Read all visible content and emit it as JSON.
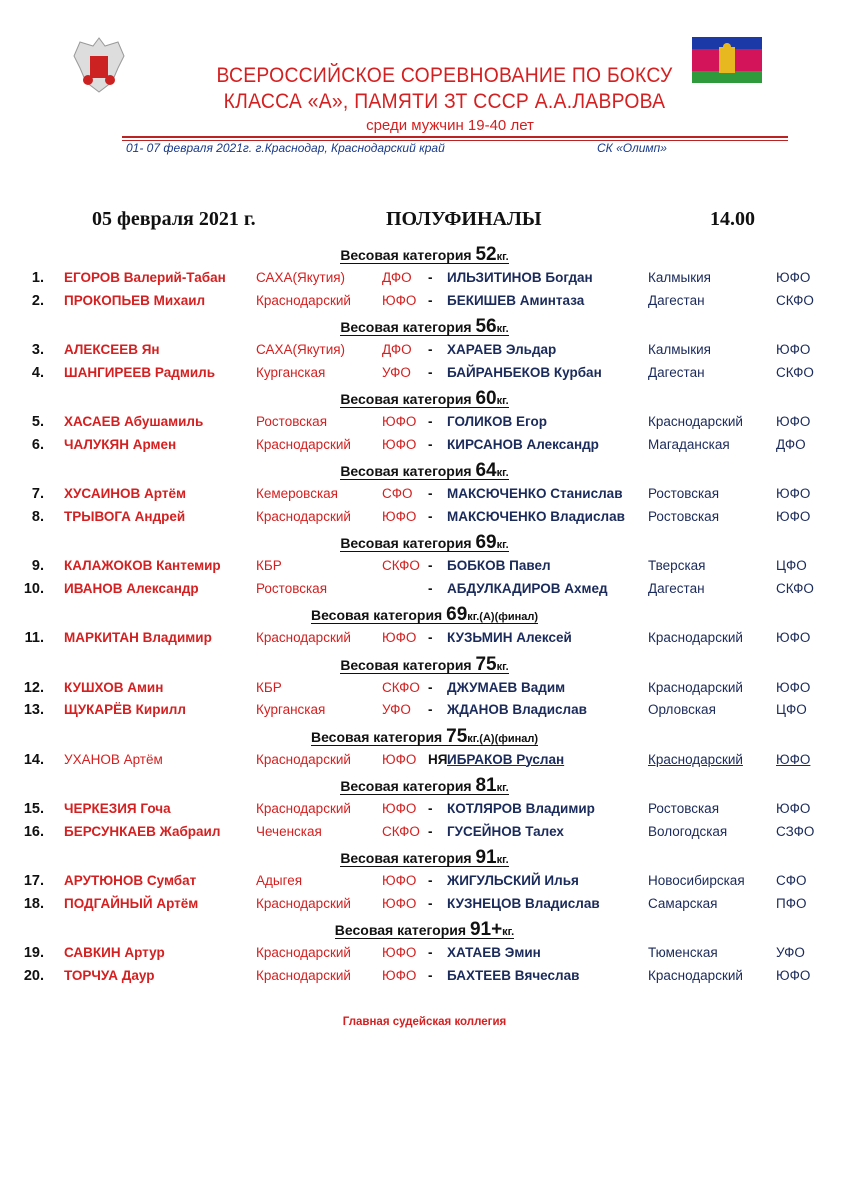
{
  "header": {
    "title_line1": "ВСЕРОССИЙСКОЕ СОРЕВНОВАНИЕ  ПО БОКСУ",
    "title_line2": "КЛАССА «А», ПАМЯТИ ЗТ СССР А.А.ЛАВРОВА",
    "subtitle": "среди мужчин  19-40 лет",
    "dates_location": "01-  07  февраля  2021г.    г.Краснодар, Краснодарский край",
    "venue": "СК  «Олимп»",
    "colors": {
      "title": "#d42020",
      "flag_top": "#1b3aa8",
      "flag_mid": "#d4145a",
      "flag_bottom": "#2e9a3c"
    }
  },
  "session": {
    "date": "05  февраля   2021 г.",
    "stage": "ПОЛУФИНАЛЫ",
    "time": "14.00"
  },
  "cat_label": "Весовая категория",
  "categories": [
    {
      "weight": "52",
      "suffix": "кг.",
      "bouts": [
        {
          "n": "1.",
          "red": "ЕГОРОВ  Валерий-Табан",
          "red_region": "САХА(Якутия)",
          "red_fd": "ДФО",
          "sep": "-",
          "blue": "ИЛЬЗИТИНОВ Богдан",
          "blue_region": "Калмыкия",
          "blue_fd": "ЮФО"
        },
        {
          "n": "2.",
          "red": "ПРОКОПЬЕВ Михаил",
          "red_region": "Краснодарский",
          "red_fd": "ЮФО",
          "sep": "-",
          "blue": "БЕКИШЕВ Аминтаза",
          "blue_region": "Дагестан",
          "blue_fd": "СКФО"
        }
      ]
    },
    {
      "weight": "56",
      "suffix": "кг.",
      "bouts": [
        {
          "n": "3.",
          "red": "АЛЕКСЕЕВ  Ян",
          "red_region": "САХА(Якутия)",
          "red_fd": "ДФО",
          "sep": "-",
          "blue": "ХАРАЕВ Эльдар",
          "blue_region": "Калмыкия",
          "blue_fd": "ЮФО"
        },
        {
          "n": "4.",
          "red": "ШАНГИРЕЕВ  Радмиль",
          "red_region": "Курганская",
          "red_fd": "УФО",
          "sep": "-",
          "blue": "БАЙРАНБЕКОВ Курбан",
          "blue_region": "Дагестан",
          "blue_fd": "СКФО"
        }
      ]
    },
    {
      "weight": "60",
      "suffix": "кг.",
      "bouts": [
        {
          "n": "5.",
          "red": "ХАСАЕВ  Абушамиль",
          "red_region": "Ростовская",
          "red_fd": "ЮФО",
          "sep": "-",
          "blue": "ГОЛИКОВ  Егор",
          "blue_region": "Краснодарский",
          "blue_fd": "ЮФО"
        },
        {
          "n": "6.",
          "red": "ЧАЛУКЯН  Армен",
          "red_region": "Краснодарский",
          "red_fd": "ЮФО",
          "sep": "-",
          "blue": "КИРСАНОВ  Александр",
          "blue_region": "Магаданская",
          "blue_fd": "ДФО"
        }
      ]
    },
    {
      "weight": "64",
      "suffix": "кг.",
      "bouts": [
        {
          "n": "7.",
          "red": "ХУСАИНОВ Артём",
          "red_region": "Кемеровская",
          "red_fd": "СФО",
          "sep": "-",
          "blue": "МАКСЮЧЕНКО Станислав",
          "blue_region": "Ростовская",
          "blue_fd": "ЮФО"
        },
        {
          "n": "8.",
          "red": "ТРЫВОГА  Андрей",
          "red_region": "Краснодарский",
          "red_fd": "ЮФО",
          "sep": "-",
          "blue": "МАКСЮЧЕНКО Владислав",
          "blue_region": "Ростовская",
          "blue_fd": "ЮФО"
        }
      ]
    },
    {
      "weight": "69",
      "suffix": "кг.",
      "bouts": [
        {
          "n": "9.",
          "red": "КАЛАЖОКОВ  Кантемир",
          "red_region": "КБР",
          "red_fd": "СКФО",
          "sep": "-",
          "blue": "БОБКОВ  Павел",
          "blue_region": "Тверская",
          "blue_fd": "ЦФО"
        },
        {
          "n": "10.",
          "red": "ИВАНОВ Александр",
          "red_region": "Ростовская",
          "red_fd": "",
          "sep": "-",
          "blue": "АБДУЛКАДИРОВ  Ахмед",
          "blue_region": "Дагестан",
          "blue_fd": "СКФО"
        }
      ]
    },
    {
      "weight": "69",
      "suffix": "кг.(А)(финал)",
      "bouts": [
        {
          "n": "11.",
          "red": "МАРКИТАН  Владимир",
          "red_region": "Краснодарский",
          "red_fd": "ЮФО",
          "sep": "-",
          "blue": "КУЗЬМИН  Алексей",
          "blue_region": "Краснодарский",
          "blue_fd": "ЮФО"
        }
      ]
    },
    {
      "weight": "75",
      "suffix": "кг.",
      "bouts": [
        {
          "n": "12.",
          "red": "КУШХОВ  Амин",
          "red_region": "КБР",
          "red_fd": "СКФО",
          "sep": "-",
          "blue": "ДЖУМАЕВ  Вадим",
          "blue_region": "Краснодарский",
          "blue_fd": "ЮФО"
        },
        {
          "n": "13.",
          "red": "ЩУКАРЁВ  Кирилл",
          "red_region": "Курганская",
          "red_fd": "УФО",
          "sep": "-",
          "blue": "ЖДАНОВ  Владислав",
          "blue_region": "Орловская",
          "blue_fd": "ЦФО"
        }
      ]
    },
    {
      "weight": "75",
      "suffix": "кг.(А)(финал)",
      "bouts": [
        {
          "n": "14.",
          "red": "УХАНОВ  Артём",
          "red_region": "Краснодарский",
          "red_fd": "ЮФО",
          "sep": "НЯ",
          "blue": "ИБРАКОВ  Руслан",
          "blue_region": "Краснодарский",
          "blue_fd": "ЮФО",
          "winner_underlined": true
        }
      ]
    },
    {
      "weight": "81",
      "suffix": "кг.",
      "bouts": [
        {
          "n": "15.",
          "red": "ЧЕРКЕЗИЯ  Гоча",
          "red_region": "Краснодарский",
          "red_fd": "ЮФО",
          "sep": "-",
          "blue": "КОТЛЯРОВ  Владимир",
          "blue_region": "Ростовская",
          "blue_fd": "ЮФО"
        },
        {
          "n": "16.",
          "red": "БЕРСУНКАЕВ  Жабраил",
          "red_region": "Чеченская",
          "red_fd": "СКФО",
          "sep": "-",
          "blue": "ГУСЕЙНОВ  Талех",
          "blue_region": "Вологодская",
          "blue_fd": "СЗФО"
        }
      ]
    },
    {
      "weight": "91",
      "suffix": "кг.",
      "bouts": [
        {
          "n": "17.",
          "red": "АРУТЮНОВ  Сумбат",
          "red_region": "Адыгея",
          "red_fd": "ЮФО",
          "sep": "-",
          "blue": "ЖИГУЛЬСКИЙ Илья",
          "blue_region": "Новосибирская",
          "blue_fd": "СФО"
        },
        {
          "n": "18.",
          "red": "ПОДГАЙНЫЙ Артём",
          "red_region": "Краснодарский",
          "red_fd": "ЮФО",
          "sep": "-",
          "blue": "КУЗНЕЦОВ Владислав",
          "blue_region": "Самарская",
          "blue_fd": "ПФО"
        }
      ]
    },
    {
      "weight": "91+",
      "suffix": "кг.",
      "bouts": [
        {
          "n": "19.",
          "red": "САВКИН  Артур",
          "red_region": "Краснодарский",
          "red_fd": "ЮФО",
          "sep": "-",
          "blue": "ХАТАЕВ Эмин",
          "blue_region": "Тюменская",
          "blue_fd": "УФО"
        },
        {
          "n": "20.",
          "red": "ТОРЧУА  Даур",
          "red_region": "Краснодарский",
          "red_fd": "ЮФО",
          "sep": "-",
          "blue": "БАХТЕЕВ  Вячеслав",
          "blue_region": "Краснодарский",
          "blue_fd": "ЮФО"
        }
      ]
    }
  ],
  "footer": "Главная  судейская  коллегия"
}
